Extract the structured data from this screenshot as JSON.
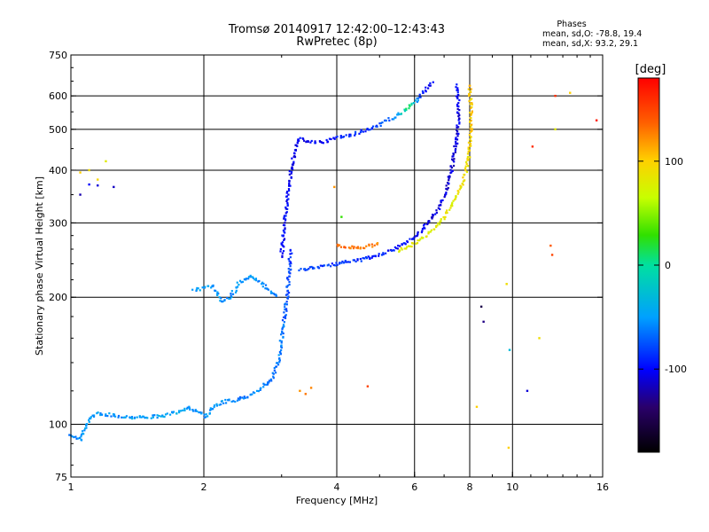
{
  "title": "Tromsø 20140917 12:42:00–12:43:43",
  "subtitle": "RwPretec (8p)",
  "phases": {
    "heading": "Phases",
    "line_o": "mean, sd,O: -78.8, 19.4",
    "line_x": "mean, sd,X:  93.2, 29.1"
  },
  "colorbar": {
    "label": "[deg]",
    "range": [
      -180,
      180
    ],
    "ticks": [
      "100",
      "0",
      "-100"
    ],
    "tick_values": [
      100,
      0,
      -100
    ]
  },
  "chart_data": {
    "type": "scatter",
    "title": "Tromsø 20140917 12:42:00–12:43:43",
    "subtitle": "RwPretec (8p)",
    "xlabel": "Frequency [MHz]",
    "ylabel": "Stationary phase Virtual Height [km]",
    "xscale": "log",
    "yscale": "log",
    "xlim": [
      1,
      16
    ],
    "ylim": [
      75,
      750
    ],
    "x_ticks": [
      {
        "value": 1,
        "label": "1"
      },
      {
        "value": 2,
        "label": "2"
      },
      {
        "value": 4,
        "label": "4"
      },
      {
        "value": 6,
        "label": "6"
      },
      {
        "value": 8,
        "label": "8"
      },
      {
        "value": 10,
        "label": "10"
      },
      {
        "value": 16,
        "label": "16"
      }
    ],
    "y_ticks": [
      {
        "value": 75,
        "label": "75"
      },
      {
        "value": 100,
        "label": "100"
      },
      {
        "value": 200,
        "label": "200"
      },
      {
        "value": 300,
        "label": "300"
      },
      {
        "value": 400,
        "label": "400"
      },
      {
        "value": 500,
        "label": "500"
      },
      {
        "value": 600,
        "label": "600"
      },
      {
        "value": 750,
        "label": "750"
      }
    ],
    "grid_x": [
      2,
      4,
      6,
      8,
      10
    ],
    "grid_y": [
      100,
      200,
      300,
      400,
      500,
      600
    ],
    "grid": true,
    "color_scale": "phase in degrees, -180 (black) → -100 (blue) → 0 (green) → 100 (yellow) → 180 (red)",
    "series": [
      {
        "points": [
          [
            1.0,
            95,
            -60
          ],
          [
            1.02,
            93,
            -60
          ],
          [
            1.05,
            92,
            -60
          ],
          [
            1.08,
            98,
            -50
          ],
          [
            1.1,
            103,
            -50
          ],
          [
            1.15,
            106,
            -50
          ],
          [
            1.25,
            105,
            -55
          ],
          [
            1.35,
            104,
            -50
          ],
          [
            1.5,
            104,
            -50
          ],
          [
            1.65,
            105,
            -45
          ],
          [
            1.75,
            107,
            -45
          ],
          [
            1.85,
            110,
            -60
          ],
          [
            1.95,
            106,
            -55
          ],
          [
            2.02,
            104,
            -50
          ],
          [
            2.1,
            110,
            -55
          ],
          [
            2.2,
            113,
            -50
          ],
          [
            2.35,
            114,
            -60
          ],
          [
            2.5,
            116,
            -60
          ],
          [
            2.7,
            122,
            -60
          ],
          [
            2.85,
            128,
            -65
          ],
          [
            2.95,
            140,
            -60
          ],
          [
            3.0,
            160,
            -60
          ],
          [
            3.05,
            180,
            -70
          ],
          [
            3.1,
            210,
            -75
          ],
          [
            3.15,
            260,
            -90
          ]
        ]
      },
      {
        "points": [
          [
            1.9,
            208,
            -50
          ],
          [
            2.0,
            210,
            -50
          ],
          [
            2.1,
            212,
            -50
          ],
          [
            2.2,
            195,
            -50
          ],
          [
            2.3,
            200,
            -55
          ],
          [
            2.4,
            215,
            -50
          ],
          [
            2.55,
            225,
            -50
          ],
          [
            2.7,
            215,
            -55
          ],
          [
            2.85,
            205,
            -60
          ],
          [
            2.95,
            200,
            -70
          ]
        ]
      },
      {
        "points": [
          [
            3.0,
            250,
            -95
          ],
          [
            3.05,
            300,
            -100
          ],
          [
            3.1,
            350,
            -100
          ],
          [
            3.15,
            400,
            -105
          ],
          [
            3.2,
            430,
            -100
          ],
          [
            3.25,
            470,
            -105
          ],
          [
            3.3,
            475,
            -100
          ],
          [
            3.5,
            465,
            -105
          ],
          [
            3.8,
            468,
            -100
          ],
          [
            4.0,
            478,
            -95
          ],
          [
            4.3,
            485,
            -90
          ],
          [
            4.6,
            495,
            -85
          ],
          [
            4.9,
            505,
            -80
          ],
          [
            5.2,
            525,
            -70
          ],
          [
            5.5,
            540,
            -50
          ],
          [
            5.8,
            560,
            20
          ],
          [
            6.1,
            590,
            -70
          ],
          [
            6.4,
            625,
            -100
          ],
          [
            6.6,
            650,
            -105
          ]
        ]
      },
      {
        "points": [
          [
            3.3,
            232,
            -80
          ],
          [
            3.6,
            236,
            -80
          ],
          [
            4.0,
            240,
            -85
          ],
          [
            4.5,
            245,
            -90
          ],
          [
            5.0,
            252,
            -90
          ],
          [
            5.5,
            262,
            -95
          ],
          [
            6.0,
            278,
            -100
          ],
          [
            6.4,
            298,
            -105
          ],
          [
            6.8,
            325,
            -105
          ],
          [
            7.1,
            360,
            -110
          ],
          [
            7.3,
            410,
            -110
          ],
          [
            7.5,
            480,
            -110
          ],
          [
            7.55,
            560,
            -105
          ],
          [
            7.5,
            640,
            -100
          ]
        ]
      },
      {
        "points": [
          [
            4.0,
            265,
            130
          ],
          [
            4.2,
            262,
            135
          ],
          [
            4.5,
            262,
            130
          ],
          [
            4.8,
            265,
            130
          ],
          [
            5.0,
            268,
            125
          ]
        ]
      },
      {
        "points": [
          [
            5.5,
            258,
            80
          ],
          [
            6.0,
            268,
            75
          ],
          [
            6.5,
            285,
            80
          ],
          [
            7.0,
            310,
            80
          ],
          [
            7.4,
            340,
            85
          ],
          [
            7.7,
            370,
            90
          ],
          [
            7.9,
            410,
            90
          ],
          [
            8.0,
            450,
            95
          ],
          [
            8.05,
            500,
            100
          ],
          [
            8.05,
            560,
            100
          ],
          [
            8.0,
            640,
            100
          ]
        ]
      },
      {
        "points": [
          [
            1.05,
            395,
            100
          ],
          [
            1.1,
            400,
            90
          ],
          [
            1.15,
            380,
            95
          ],
          [
            1.2,
            420,
            80
          ],
          [
            1.1,
            370,
            -100
          ],
          [
            1.15,
            368,
            -110
          ],
          [
            1.05,
            350,
            -120
          ],
          [
            1.25,
            365,
            -115
          ]
        ]
      },
      {
        "points": [
          [
            3.3,
            120,
            120
          ],
          [
            3.4,
            118,
            130
          ],
          [
            3.5,
            122,
            125
          ],
          [
            4.7,
            123,
            150
          ],
          [
            8.3,
            110,
            100
          ],
          [
            9.8,
            88,
            100
          ],
          [
            9.85,
            150,
            -30
          ],
          [
            8.5,
            190,
            -150
          ],
          [
            8.6,
            175,
            -130
          ],
          [
            10.8,
            120,
            -110
          ],
          [
            11.1,
            455,
            160
          ],
          [
            12.2,
            265,
            140
          ],
          [
            12.3,
            252,
            150
          ],
          [
            12.5,
            600,
            160
          ],
          [
            13.5,
            610,
            100
          ],
          [
            12.5,
            500,
            80
          ],
          [
            15.5,
            525,
            170
          ],
          [
            11.5,
            160,
            90
          ],
          [
            3.95,
            365,
            120
          ],
          [
            4.1,
            310,
            30
          ],
          [
            9.7,
            215,
            90
          ]
        ]
      }
    ]
  }
}
